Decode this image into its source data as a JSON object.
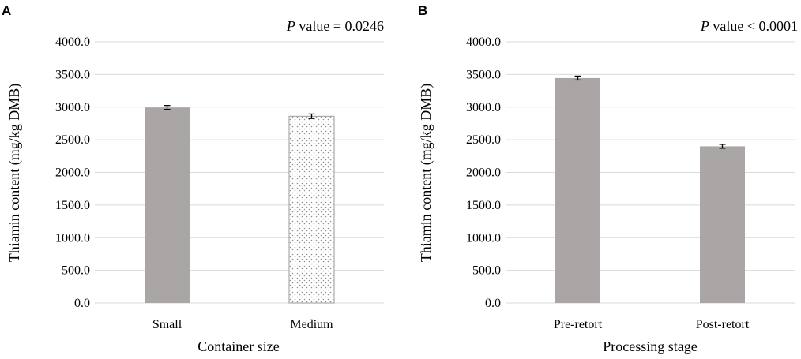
{
  "chart_data": [
    {
      "panel": "A",
      "type": "bar",
      "annotation_prefix": "P",
      "annotation_rest": " value = 0.0246",
      "xlabel": "Container size",
      "ylabel": "Thiamin content (mg/kg DMB)",
      "ylim": [
        0,
        4000
      ],
      "yticks": [
        "0.0",
        "500.0",
        "1000.0",
        "1500.0",
        "2000.0",
        "2500.0",
        "3000.0",
        "3500.0",
        "4000.0"
      ],
      "grid": true,
      "categories": [
        "Small",
        "Medium"
      ],
      "values": [
        2995,
        2860
      ],
      "errors": [
        30,
        35
      ],
      "fills": [
        "solid",
        "dotted"
      ],
      "colors": [
        "#aba6a6",
        "#ffffff"
      ]
    },
    {
      "panel": "B",
      "type": "bar",
      "annotation_prefix": "P",
      "annotation_rest": " value < 0.0001",
      "xlabel": "Processing stage",
      "ylabel": "Thiamin content (mg/kg DMB)",
      "ylim": [
        0,
        4000
      ],
      "yticks": [
        "0.0",
        "500.0",
        "1000.0",
        "1500.0",
        "2000.0",
        "2500.0",
        "3000.0",
        "3500.0",
        "4000.0"
      ],
      "grid": true,
      "categories": [
        "Pre-retort",
        "Post-retort"
      ],
      "values": [
        3445,
        2400
      ],
      "errors": [
        30,
        30
      ],
      "fills": [
        "solid",
        "solid"
      ],
      "colors": [
        "#aba6a6",
        "#aba6a6"
      ]
    }
  ]
}
